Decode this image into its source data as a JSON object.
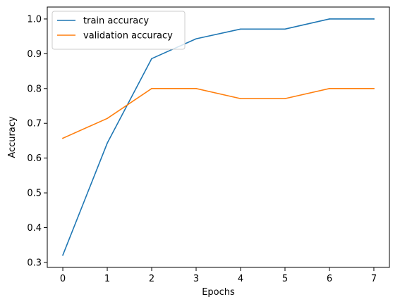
{
  "chart_data": {
    "type": "line",
    "title": "",
    "xlabel": "Epochs",
    "ylabel": "Accuracy",
    "x": [
      0,
      1,
      2,
      3,
      4,
      5,
      6,
      7
    ],
    "xticks": [
      "0",
      "1",
      "2",
      "3",
      "4",
      "5",
      "6",
      "7"
    ],
    "yticks": [
      "0.3",
      "0.4",
      "0.5",
      "0.6",
      "0.7",
      "0.8",
      "0.9",
      "1.0"
    ],
    "xlim": [
      -0.35,
      7.35
    ],
    "ylim": [
      0.2857,
      1.0343
    ],
    "grid": false,
    "legend_position": "top-left",
    "series": [
      {
        "name": "train accuracy",
        "color": "#1f77b4",
        "values": [
          0.321,
          0.643,
          0.886,
          0.943,
          0.971,
          0.971,
          1.0,
          1.0
        ]
      },
      {
        "name": "validation accuracy",
        "color": "#ff7f0e",
        "values": [
          0.657,
          0.714,
          0.8,
          0.8,
          0.771,
          0.771,
          0.8,
          0.8
        ]
      }
    ]
  }
}
